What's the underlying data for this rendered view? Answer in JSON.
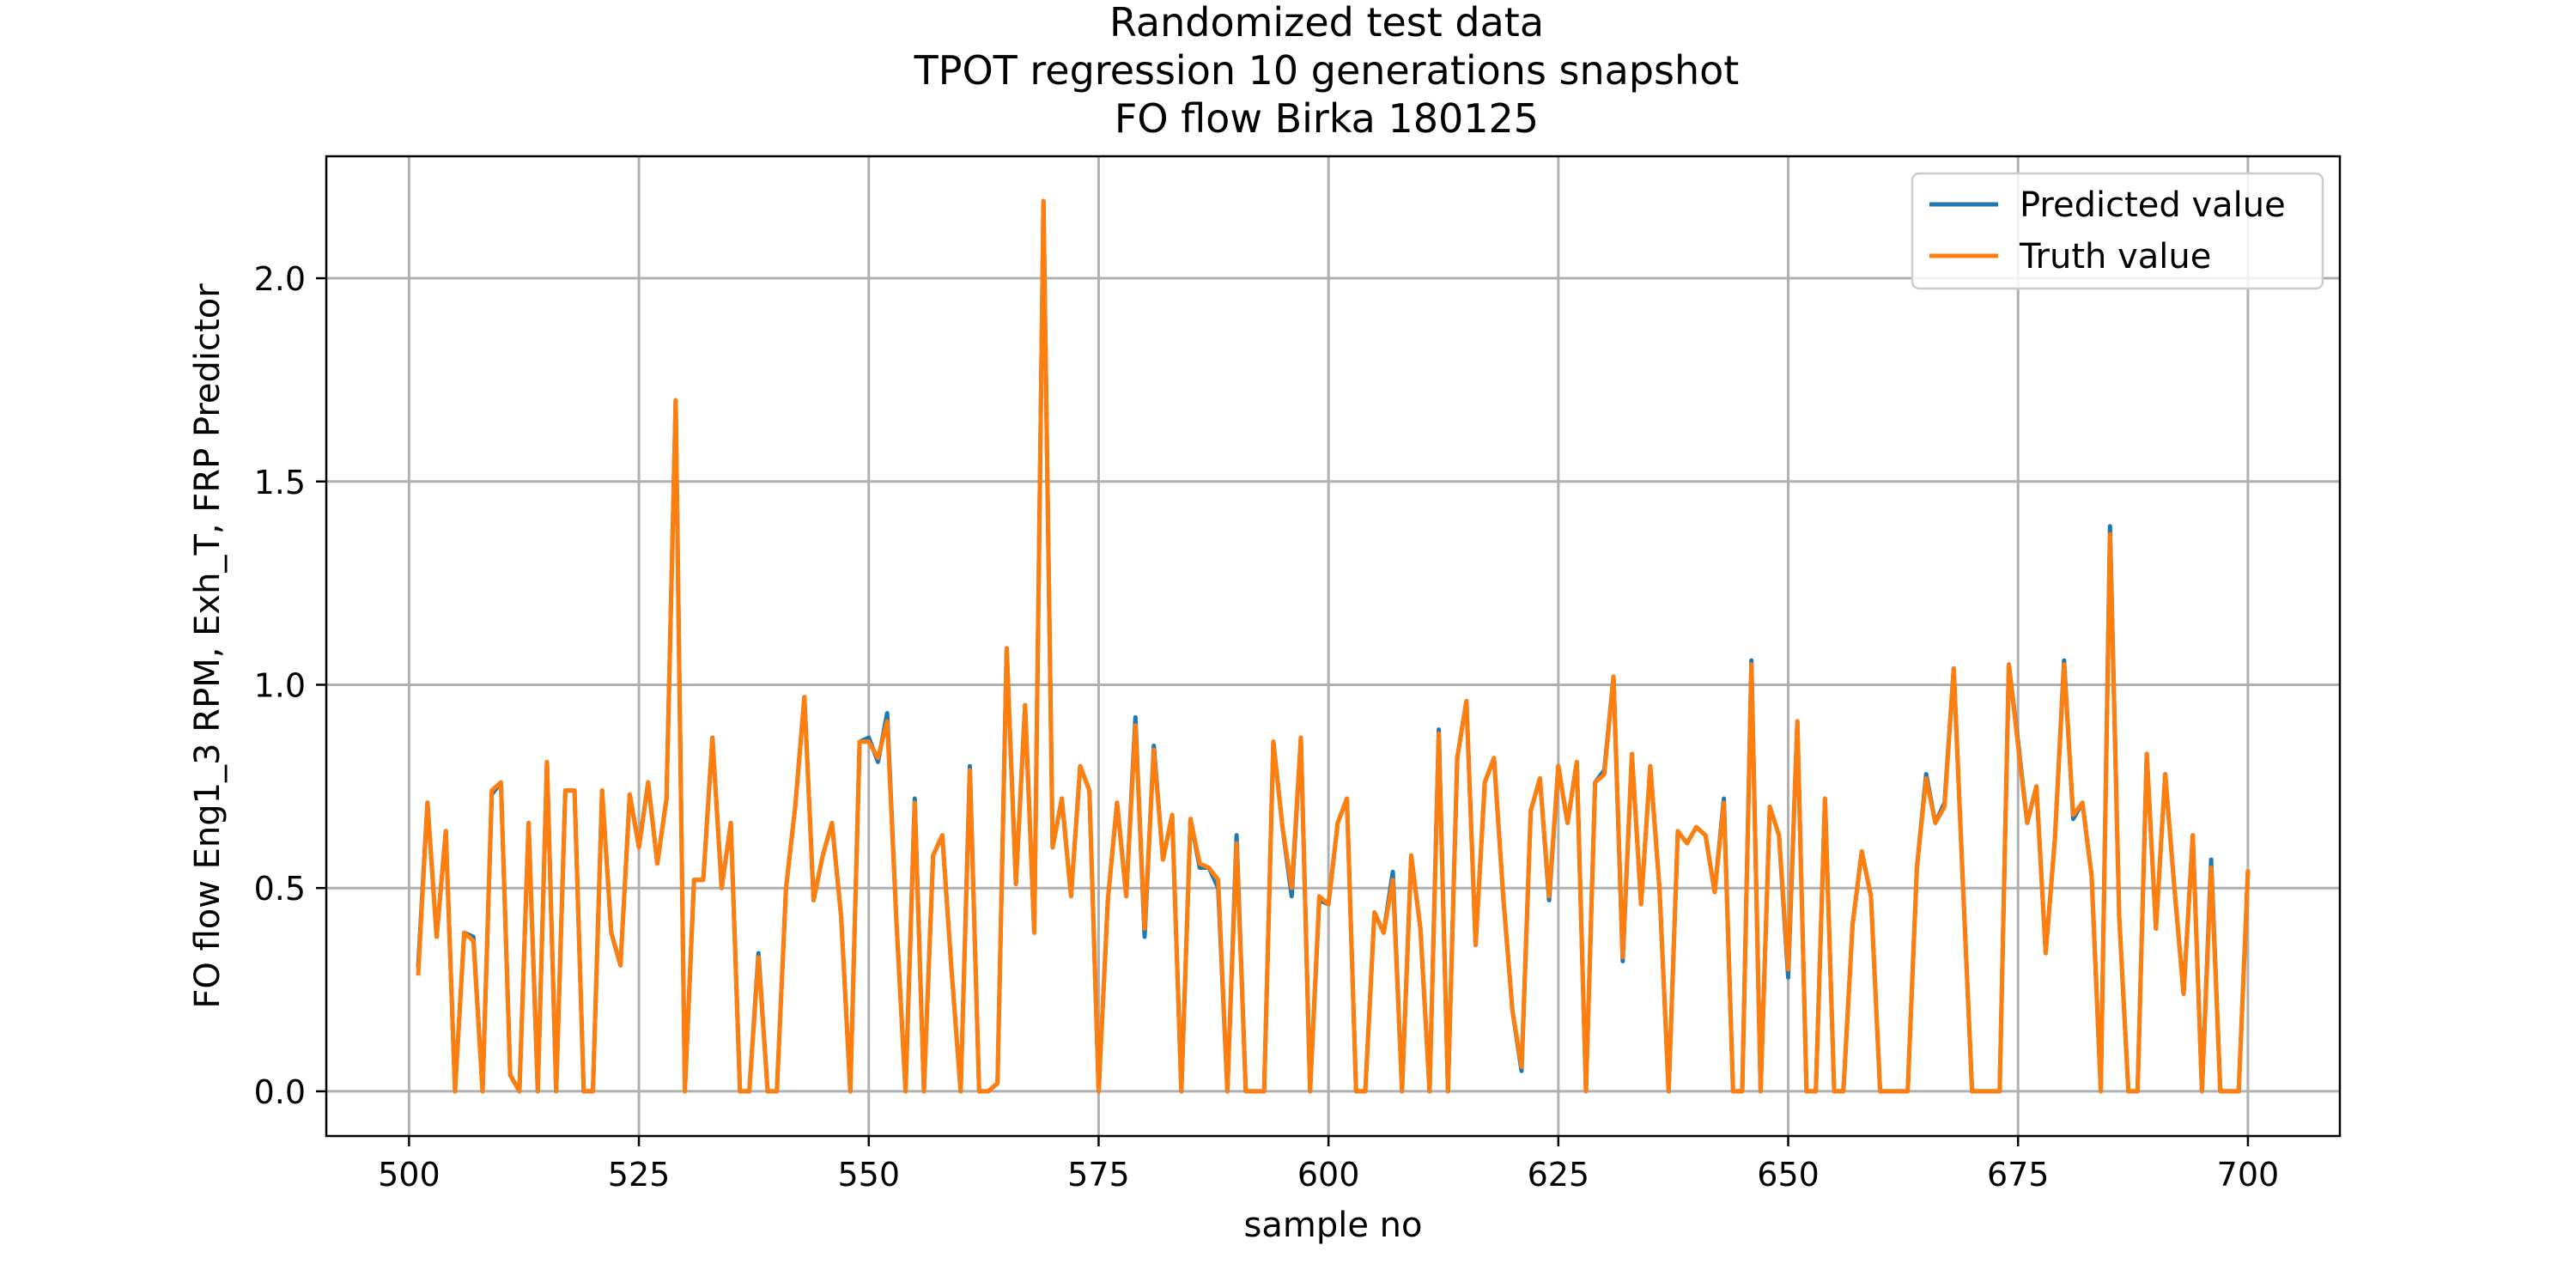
{
  "chart_data": {
    "type": "line",
    "title": [
      "Randomized test data",
      "TPOT regression 10 generations snapshot",
      "FO flow Birka 180125"
    ],
    "xlabel": "sample no",
    "ylabel": "FO flow Eng1_3 RPM, Exh_T, FRP Predictor",
    "xlim": [
      491,
      710
    ],
    "ylim": [
      -0.11,
      2.3
    ],
    "xticks": [
      500,
      525,
      550,
      575,
      600,
      625,
      650,
      675,
      700
    ],
    "yticks": [
      0.0,
      0.5,
      1.0,
      1.5,
      2.0
    ],
    "ytick_labels": [
      "0.0",
      "0.5",
      "1.0",
      "1.5",
      "2.0"
    ],
    "grid": true,
    "legend_position": "top-right",
    "x_start": 501,
    "series": [
      {
        "name": "Predicted value",
        "color": "#1f77b4",
        "values": [
          0.31,
          0.71,
          0.38,
          0.64,
          0.0,
          0.39,
          0.38,
          0.0,
          0.73,
          0.76,
          0.04,
          0.0,
          0.66,
          0.0,
          0.81,
          0.0,
          0.74,
          0.74,
          0.0,
          0.0,
          0.74,
          0.39,
          0.31,
          0.73,
          0.6,
          0.76,
          0.56,
          0.72,
          1.7,
          0.0,
          0.52,
          0.52,
          0.87,
          0.5,
          0.66,
          0.0,
          0.0,
          0.34,
          0.0,
          0.0,
          0.5,
          0.7,
          0.97,
          0.47,
          0.58,
          0.66,
          0.43,
          0.0,
          0.86,
          0.87,
          0.81,
          0.93,
          0.42,
          0.0,
          0.72,
          0.0,
          0.58,
          0.63,
          0.3,
          0.0,
          0.8,
          0.0,
          0.0,
          0.02,
          1.09,
          0.51,
          0.95,
          0.39,
          2.19,
          0.6,
          0.72,
          0.48,
          0.8,
          0.74,
          0.0,
          0.47,
          0.71,
          0.48,
          0.92,
          0.38,
          0.85,
          0.57,
          0.68,
          0.0,
          0.67,
          0.55,
          0.55,
          0.5,
          0.0,
          0.63,
          0.0,
          0.0,
          0.0,
          0.86,
          0.65,
          0.48,
          0.87,
          0.0,
          0.47,
          0.46,
          0.66,
          0.72,
          0.0,
          0.0,
          0.44,
          0.39,
          0.54,
          0.0,
          0.58,
          0.4,
          0.0,
          0.89,
          0.0,
          0.82,
          0.96,
          0.36,
          0.76,
          0.82,
          0.48,
          0.2,
          0.05,
          0.69,
          0.77,
          0.47,
          0.8,
          0.66,
          0.81,
          0.0,
          0.76,
          0.79,
          1.02,
          0.32,
          0.83,
          0.46,
          0.8,
          0.5,
          0.0,
          0.64,
          0.61,
          0.65,
          0.63,
          0.49,
          0.72,
          0.0,
          0.0,
          1.06,
          0.0,
          0.7,
          0.63,
          0.28,
          0.91,
          0.0,
          0.0,
          0.72,
          0.0,
          0.0,
          0.41,
          0.59,
          0.48,
          0.0,
          0.0,
          0.0,
          0.0,
          0.55,
          0.78,
          0.66,
          0.71,
          1.04,
          0.51,
          0.0,
          0.0,
          0.0,
          0.0,
          1.05,
          0.86,
          0.66,
          0.75,
          0.34,
          0.62,
          1.06,
          0.67,
          0.71,
          0.53,
          0.0,
          1.39,
          0.43,
          0.0,
          0.0,
          0.83,
          0.4,
          0.78,
          0.5,
          0.24,
          0.63,
          0.0,
          0.57,
          0.0,
          0.0,
          0.0,
          0.54
        ]
      },
      {
        "name": "Truth value",
        "color": "#ff7f0e",
        "values": [
          0.29,
          0.71,
          0.38,
          0.64,
          0.0,
          0.39,
          0.37,
          0.0,
          0.74,
          0.76,
          0.04,
          0.0,
          0.66,
          0.0,
          0.81,
          0.0,
          0.74,
          0.74,
          0.0,
          0.0,
          0.74,
          0.39,
          0.31,
          0.73,
          0.6,
          0.76,
          0.56,
          0.72,
          1.7,
          0.0,
          0.52,
          0.52,
          0.87,
          0.5,
          0.66,
          0.0,
          0.0,
          0.33,
          0.0,
          0.0,
          0.5,
          0.7,
          0.97,
          0.47,
          0.58,
          0.66,
          0.43,
          0.0,
          0.86,
          0.86,
          0.82,
          0.91,
          0.42,
          0.0,
          0.71,
          0.0,
          0.58,
          0.63,
          0.3,
          0.0,
          0.79,
          0.0,
          0.0,
          0.02,
          1.09,
          0.51,
          0.95,
          0.39,
          2.19,
          0.6,
          0.72,
          0.48,
          0.8,
          0.74,
          0.0,
          0.47,
          0.71,
          0.48,
          0.9,
          0.4,
          0.84,
          0.57,
          0.68,
          0.0,
          0.67,
          0.56,
          0.55,
          0.52,
          0.0,
          0.61,
          0.0,
          0.0,
          0.0,
          0.86,
          0.65,
          0.5,
          0.87,
          0.0,
          0.48,
          0.46,
          0.66,
          0.72,
          0.0,
          0.0,
          0.44,
          0.39,
          0.52,
          0.0,
          0.58,
          0.4,
          0.0,
          0.88,
          0.0,
          0.82,
          0.96,
          0.36,
          0.76,
          0.82,
          0.48,
          0.2,
          0.06,
          0.69,
          0.77,
          0.48,
          0.8,
          0.66,
          0.81,
          0.0,
          0.76,
          0.78,
          1.02,
          0.33,
          0.83,
          0.46,
          0.8,
          0.5,
          0.0,
          0.64,
          0.61,
          0.65,
          0.63,
          0.49,
          0.71,
          0.0,
          0.0,
          1.05,
          0.0,
          0.7,
          0.63,
          0.3,
          0.91,
          0.0,
          0.0,
          0.72,
          0.0,
          0.0,
          0.41,
          0.59,
          0.48,
          0.0,
          0.0,
          0.0,
          0.0,
          0.55,
          0.77,
          0.66,
          0.7,
          1.04,
          0.51,
          0.0,
          0.0,
          0.0,
          0.0,
          1.05,
          0.85,
          0.66,
          0.75,
          0.34,
          0.62,
          1.05,
          0.68,
          0.71,
          0.53,
          0.0,
          1.37,
          0.43,
          0.0,
          0.0,
          0.83,
          0.4,
          0.78,
          0.5,
          0.24,
          0.63,
          0.0,
          0.55,
          0.0,
          0.0,
          0.0,
          0.54
        ]
      }
    ]
  }
}
